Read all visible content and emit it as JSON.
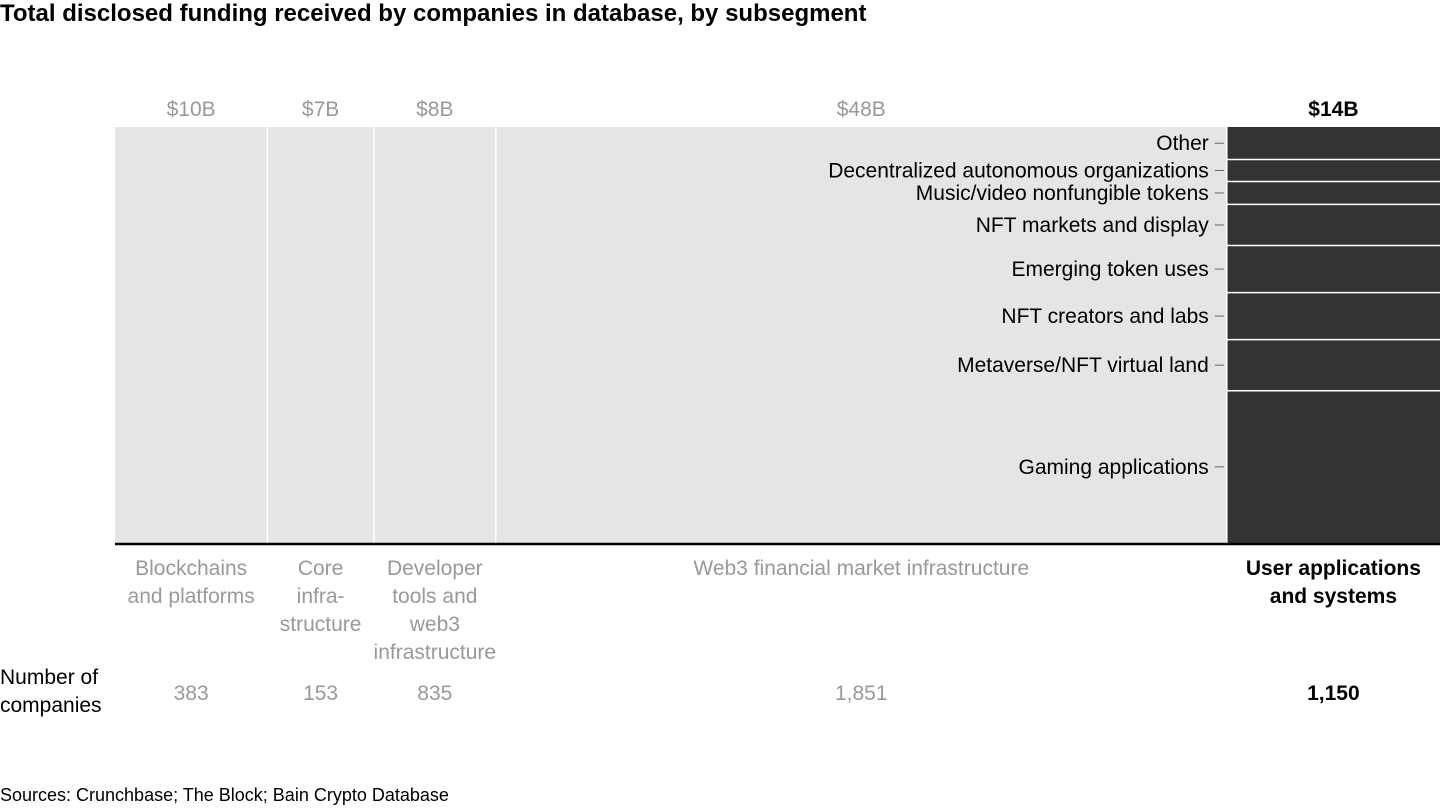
{
  "title": "Total disclosed funding received by companies in database, by subsegment",
  "row_label": [
    "Number of",
    "companies"
  ],
  "source": "Sources: Crunchbase; The Block; Bain Crypto Database",
  "colors": {
    "muted_fill": "#e5e5e5",
    "highlight_fill": "#333333",
    "muted_text": "#999999",
    "highlight_text": "#000000",
    "divider": "#ffffff"
  },
  "chart_data": {
    "type": "bar",
    "subtype": "marimekko",
    "title": "Total disclosed funding received by companies in database, by subsegment",
    "unit": "$B",
    "segments": [
      {
        "name": [
          "Blockchains",
          "and platforms"
        ],
        "value": 10,
        "value_label": "$10B",
        "companies": "383",
        "highlight": false
      },
      {
        "name": [
          "Core",
          "infra-",
          "structure"
        ],
        "value": 7,
        "value_label": "$7B",
        "companies": "153",
        "highlight": false
      },
      {
        "name": [
          "Developer",
          "tools and",
          "web3",
          "infrastructure"
        ],
        "value": 8,
        "value_label": "$8B",
        "companies": "835",
        "highlight": false
      },
      {
        "name": [
          "Web3 financial market infrastructure"
        ],
        "value": 48,
        "value_label": "$48B",
        "companies": "1,851",
        "highlight": false
      },
      {
        "name": [
          "User applications",
          "and systems"
        ],
        "value": 14,
        "value_label": "$14B",
        "companies": "1,150",
        "highlight": true
      }
    ],
    "subsegments": {
      "segment": "User applications and systems",
      "order": "top-to-bottom",
      "items": [
        {
          "name": "Other",
          "share": 0.078
        },
        {
          "name": "Decentralized autonomous organizations",
          "share": 0.053
        },
        {
          "name": "Music/video nonfungible tokens",
          "share": 0.055
        },
        {
          "name": "NFT markets and display",
          "share": 0.099
        },
        {
          "name": "Emerging token uses",
          "share": 0.113
        },
        {
          "name": "NFT creators and labs",
          "share": 0.113
        },
        {
          "name": "Metaverse/NFT virtual land",
          "share": 0.123
        },
        {
          "name": "Gaming applications",
          "share": 0.366
        }
      ]
    }
  }
}
